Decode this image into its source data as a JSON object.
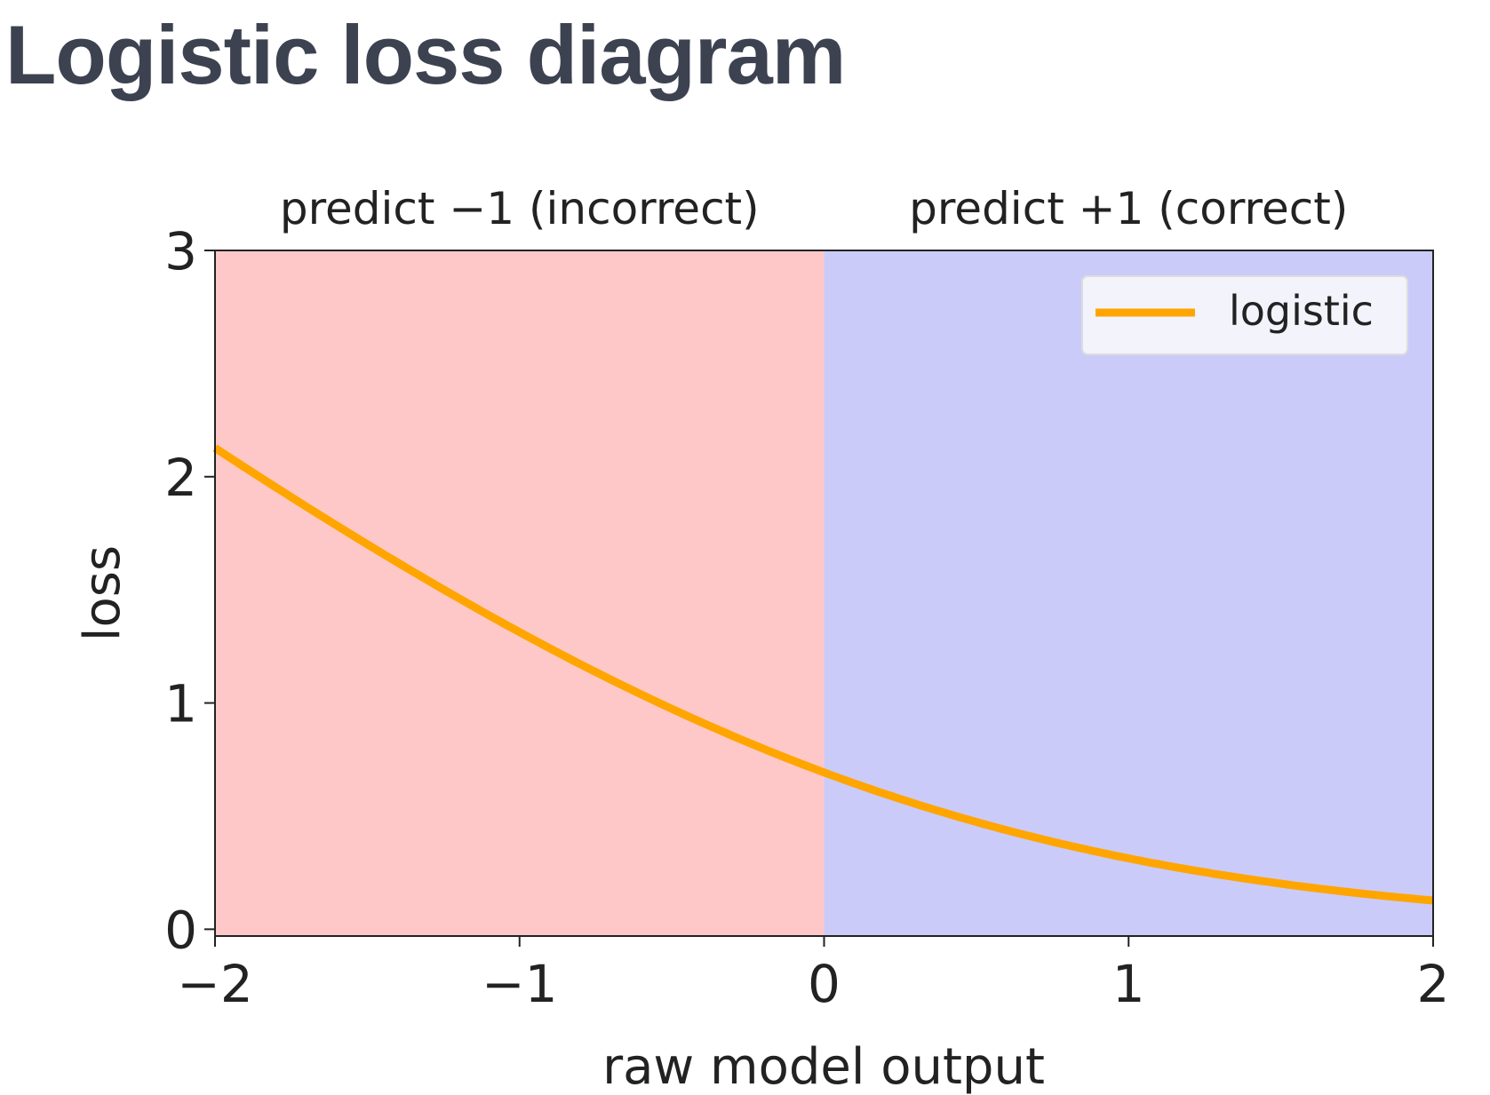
{
  "title": "Logistic loss diagram",
  "chart_data": {
    "type": "line",
    "title": "",
    "xlabel": "raw model output",
    "ylabel": "loss",
    "xlim": [
      -2,
      2
    ],
    "ylim": [
      -0.03,
      3
    ],
    "xticks": [
      "−2",
      "−1",
      "0",
      "1",
      "2"
    ],
    "xtick_values": [
      -2,
      -1,
      0,
      1,
      2
    ],
    "yticks": [
      "0",
      "1",
      "2",
      "3"
    ],
    "ytick_values": [
      0,
      1,
      2,
      3
    ],
    "regions": [
      {
        "label": "predict −1 (incorrect)",
        "x": [
          -2,
          0
        ],
        "color": "#ffc8c8"
      },
      {
        "label": "predict +1 (correct)",
        "x": [
          0,
          2
        ],
        "color": "#cbcbfa"
      }
    ],
    "series": [
      {
        "name": "logistic",
        "color": "#ffa500",
        "function": "log(1+exp(-x))",
        "x": [
          -2,
          -1.5,
          -1,
          -0.5,
          0,
          0.5,
          1,
          1.5,
          2
        ],
        "y": [
          2.127,
          1.701,
          1.313,
          0.974,
          0.693,
          0.474,
          0.313,
          0.201,
          0.127
        ]
      }
    ],
    "legend": {
      "position": "top-right",
      "entries": [
        "logistic"
      ]
    },
    "grid": false
  }
}
